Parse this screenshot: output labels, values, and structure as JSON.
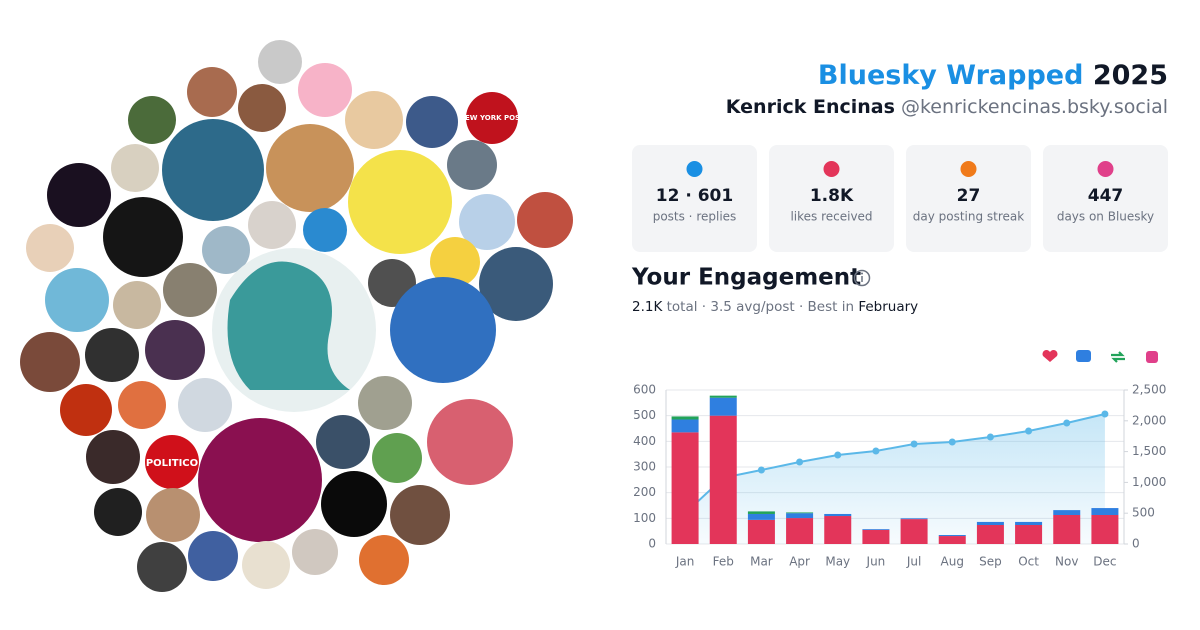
{
  "header": {
    "title": "Bluesky Wrapped",
    "year": "2025",
    "name": "Kenrick Encinas",
    "handle": "@kenrickencinas.bsky.social"
  },
  "stats": [
    {
      "value": "12 · 601",
      "label": "posts · replies"
    },
    {
      "value": "1.8K",
      "label": "likes received"
    },
    {
      "value": "27",
      "label": "day posting streak"
    },
    {
      "value": "447",
      "label": "days on Bluesky"
    }
  ],
  "engagement": {
    "title": "Your Engagement",
    "total": "2.1K",
    "summary": "total · 3.5 avg/post · Best in",
    "best": "February"
  },
  "collage": {
    "labels": [
      "POLITICO",
      "NEW YORK POST"
    ]
  },
  "chart_data": {
    "type": "bar",
    "stacked": true,
    "categories": [
      "Jan",
      "Feb",
      "Mar",
      "Apr",
      "May",
      "Jun",
      "Jul",
      "Aug",
      "Sep",
      "Oct",
      "Nov",
      "Dec"
    ],
    "series": [
      {
        "color": "#e3355a",
        "values": [
          435,
          500,
          94,
          101,
          109,
          55,
          97,
          31,
          74,
          74,
          113,
          113
        ]
      },
      {
        "color": "#2f7fe0",
        "values": [
          50,
          70,
          23,
          19,
          8,
          3,
          3,
          4,
          12,
          12,
          19,
          27
        ]
      },
      {
        "color": "#22a35a",
        "values": [
          12,
          8,
          10,
          3,
          0,
          0,
          0,
          0,
          0,
          0,
          0,
          0
        ]
      },
      {
        "color": "#e0408a",
        "values": [
          0,
          0,
          0,
          0,
          0,
          0,
          0,
          0,
          0,
          0,
          0,
          0
        ]
      },
      {
        "type": "line",
        "axis": "y2",
        "color": "#5bb8e8",
        "values": [
          498,
          1075,
          1201,
          1331,
          1445,
          1510,
          1623,
          1656,
          1737,
          1834,
          1964,
          2110
        ]
      }
    ],
    "ylim": [
      0,
      600
    ],
    "yticks": [
      0,
      100,
      200,
      300,
      400,
      500,
      600
    ],
    "y2lim": [
      0,
      2500
    ],
    "y2ticks": [
      0,
      500,
      {
        "value": 1000,
        "label": "1,000"
      },
      {
        "value": 1500,
        "label": "1,500"
      },
      {
        "value": 2000,
        "label": "2,000"
      },
      {
        "value": 2500,
        "label": "2,500"
      }
    ],
    "grid": true
  }
}
